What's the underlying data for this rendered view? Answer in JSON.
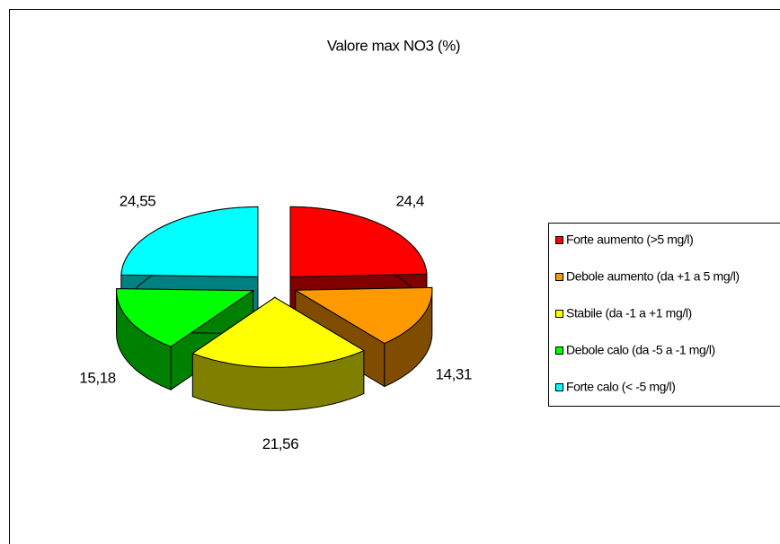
{
  "chart_data": {
    "type": "pie",
    "title": "Valore max NO3 (%)",
    "categories": [
      "Forte aumento (>5 mg/l)",
      "Debole aumento (da +1 a 5 mg/l)",
      "Stabile (da -1 a +1 mg/l)",
      "Debole calo (da -5 a -1 mg/l)",
      "Forte calo (< -5 mg/l)"
    ],
    "values": [
      24.4,
      14.31,
      21.56,
      15.18,
      24.55
    ],
    "value_labels": [
      "24,4",
      "14,31",
      "21,56",
      "15,18",
      "24,55"
    ],
    "colors": [
      "#ff0000",
      "#ff9900",
      "#ffff00",
      "#00ff00",
      "#00ffff"
    ],
    "three_d": true,
    "exploded": true,
    "legend": "right"
  }
}
